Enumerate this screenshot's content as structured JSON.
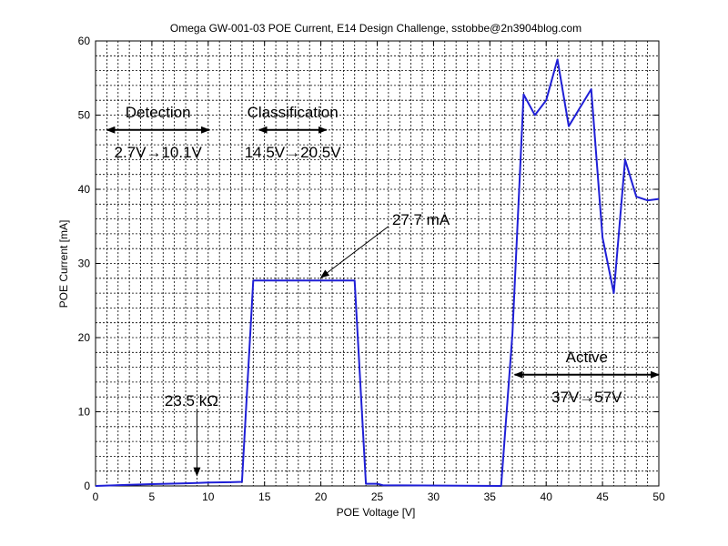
{
  "chart_data": {
    "type": "line",
    "title": "Omega GW-001-03 POE Current, E14 Design Challenge, sstobbe@2n3904blog.com",
    "xlabel": "POE Voltage [V]",
    "ylabel": "POE Current [mA]",
    "xlim": [
      0,
      50
    ],
    "ylim": [
      0,
      60
    ],
    "xticks": [
      0,
      5,
      10,
      15,
      20,
      25,
      30,
      35,
      40,
      45,
      50
    ],
    "yticks": [
      0,
      10,
      20,
      30,
      40,
      50,
      60
    ],
    "grid": true,
    "minor_grid_x_step": 1,
    "minor_grid_y_step": 2,
    "series": [
      {
        "color": "#1f1fd6",
        "x": [
          0,
          3,
          5,
          8,
          9,
          10,
          12,
          13,
          14,
          15,
          20,
          22,
          23,
          24,
          25,
          25.5,
          36,
          37,
          38,
          39,
          40,
          41,
          42,
          43,
          44,
          45,
          46,
          47,
          48,
          49,
          50
        ],
        "y": [
          0,
          0.15,
          0.25,
          0.35,
          0.4,
          0.45,
          0.5,
          0.55,
          27.7,
          27.7,
          27.7,
          27.7,
          27.7,
          0.3,
          0.3,
          0.1,
          0,
          20.5,
          52.8,
          50.0,
          52.0,
          57.5,
          48.5,
          51.0,
          53.5,
          33.5,
          26.0,
          44.0,
          39.0,
          38.5,
          38.7
        ]
      }
    ],
    "annotations": [
      {
        "text": "Detection",
        "sub": "2.7V→10.1V",
        "arrow_x": [
          1,
          10.1
        ],
        "arrow_y": 48
      },
      {
        "text": "Classification",
        "sub": "14.5V→20.5V",
        "arrow_x": [
          14.5,
          20.5
        ],
        "arrow_y": 48
      },
      {
        "text": "Active",
        "sub": "37V→57V",
        "arrow_x": [
          37.2,
          50
        ],
        "arrow_y": 15
      },
      {
        "text": "27.7 mA",
        "from": [
          26,
          35
        ],
        "to": [
          20,
          28.1
        ]
      },
      {
        "text": "23.5 kΩ",
        "from": [
          9,
          10.3
        ],
        "to": [
          9,
          1.4
        ]
      }
    ]
  }
}
